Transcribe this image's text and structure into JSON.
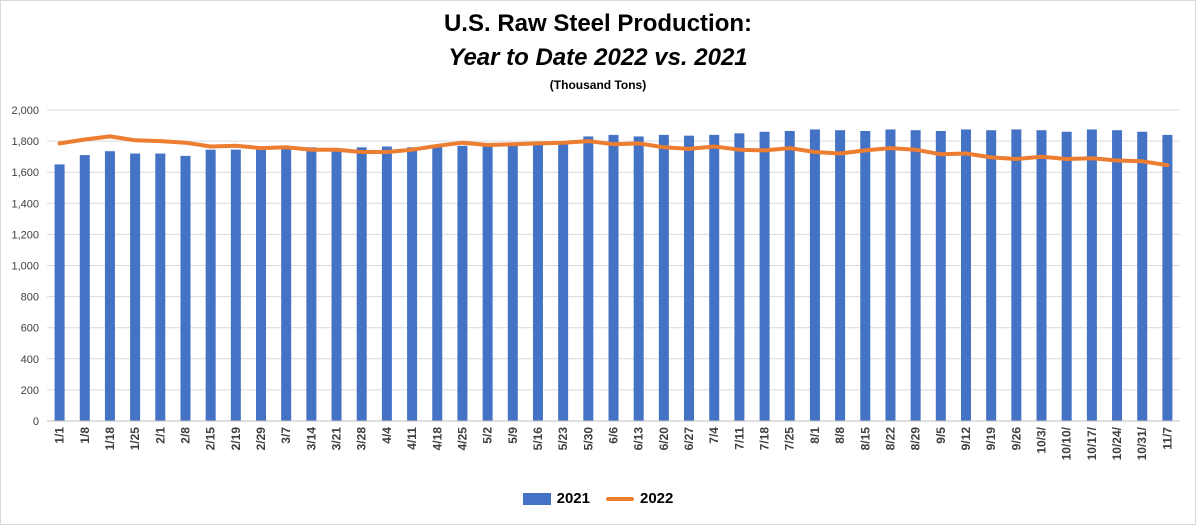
{
  "chart_data": {
    "type": "bar",
    "title": "U.S. Raw Steel Production:",
    "subtitle": "Year to Date 2022 vs. 2021",
    "unit_note": "(Thousand Tons)",
    "xlabel": "",
    "ylabel": "",
    "ylim": [
      0,
      2000
    ],
    "yticks": [
      0,
      200,
      400,
      600,
      800,
      1000,
      1200,
      1400,
      1600,
      1800,
      2000
    ],
    "ytick_labels": [
      "0",
      "200",
      "400",
      "600",
      "800",
      "1,000",
      "1,200",
      "1,400",
      "1,600",
      "1,800",
      "2,000"
    ],
    "grid": true,
    "legend": "bottom",
    "categories": [
      "1/1",
      "1/8",
      "1/18",
      "1/25",
      "2/1",
      "2/8",
      "2/15",
      "2/19",
      "2/29",
      "3/7",
      "3/14",
      "3/21",
      "3/28",
      "4/4",
      "4/11",
      "4/18",
      "4/25",
      "5/2",
      "5/9",
      "5/16",
      "5/23",
      "5/30",
      "6/6",
      "6/13",
      "6/20",
      "6/27",
      "7/4",
      "7/11",
      "7/18",
      "7/25",
      "8/1",
      "8/8",
      "8/15",
      "8/22",
      "8/29",
      "9/5",
      "9/12",
      "9/19",
      "9/26",
      "10/3/",
      "10/10/",
      "10/17/",
      "10/24/",
      "10/31/",
      "11/7"
    ],
    "series": [
      {
        "name": "2021",
        "type": "bar",
        "color": "#4472c4",
        "values": [
          1650,
          1710,
          1735,
          1720,
          1720,
          1705,
          1745,
          1745,
          1745,
          1750,
          1760,
          1750,
          1760,
          1765,
          1760,
          1765,
          1770,
          1770,
          1775,
          1780,
          1780,
          1830,
          1840,
          1830,
          1840,
          1835,
          1840,
          1850,
          1860,
          1865,
          1875,
          1870,
          1865,
          1875,
          1870,
          1865,
          1875,
          1870,
          1875,
          1870,
          1860,
          1875,
          1870,
          1860,
          1840
        ]
      },
      {
        "name": "2022",
        "type": "line",
        "color": "#ed7d31",
        "values": [
          1785,
          1810,
          1830,
          1805,
          1800,
          1790,
          1765,
          1770,
          1755,
          1760,
          1745,
          1745,
          1730,
          1730,
          1745,
          1770,
          1790,
          1775,
          1780,
          1785,
          1790,
          1800,
          1780,
          1785,
          1760,
          1750,
          1765,
          1745,
          1740,
          1755,
          1730,
          1720,
          1740,
          1755,
          1745,
          1715,
          1720,
          1695,
          1685,
          1700,
          1685,
          1690,
          1675,
          1670,
          1645
        ]
      }
    ]
  }
}
